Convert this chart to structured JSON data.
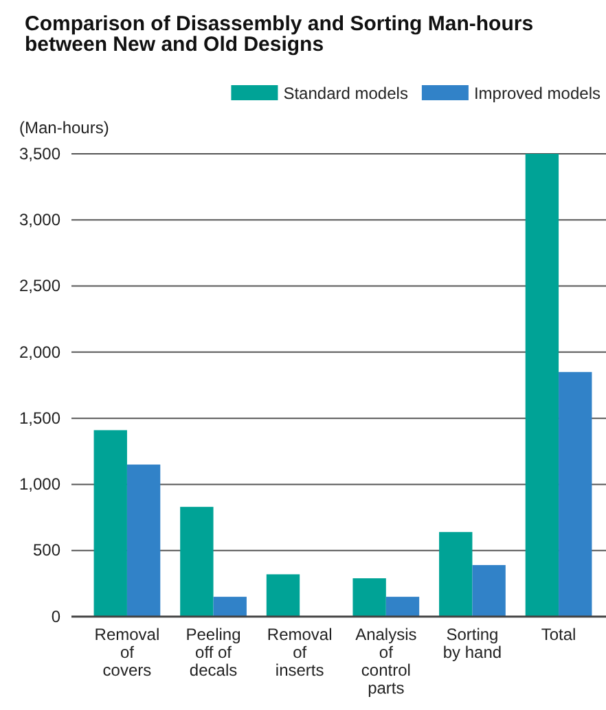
{
  "chart_data": {
    "type": "bar",
    "title": "Comparison of Disassembly and Sorting Man-hours between New and Old Designs",
    "ylabel": "(Man-hours)",
    "categories": [
      "Removal of covers",
      "Peeling off of decals",
      "Removal of inserts",
      "Analysis of control parts",
      "Sorting by hand",
      "Total"
    ],
    "series": [
      {
        "name": "Standard models",
        "color": "#00a396",
        "values": [
          1410,
          830,
          320,
          290,
          640,
          3500
        ]
      },
      {
        "name": "Improved models",
        "color": "#3182c8",
        "values": [
          1150,
          150,
          0,
          150,
          390,
          1850
        ]
      }
    ],
    "ylim": [
      0,
      3500
    ],
    "yticks": [
      {
        "value": 0,
        "label": "0"
      },
      {
        "value": 500,
        "label": "500"
      },
      {
        "value": 1000,
        "label": "1,000"
      },
      {
        "value": 1500,
        "label": "1,500"
      },
      {
        "value": 2000,
        "label": "2,000"
      },
      {
        "value": 2500,
        "label": "2,500"
      },
      {
        "value": 3000,
        "label": "3,000"
      },
      {
        "value": 3500,
        "label": "3,500"
      }
    ],
    "grid": "y",
    "legend": "top right"
  }
}
